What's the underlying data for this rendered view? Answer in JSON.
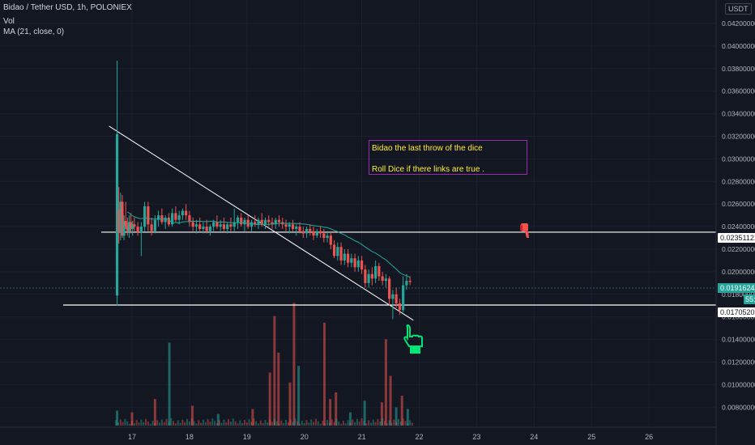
{
  "header": {
    "title": "Bidao / Tether USD, 1h, POLONIEX",
    "vol": "Vol",
    "ma": "MA (21, close, 0)"
  },
  "currency": "USDT",
  "annotation": {
    "line1": "Bidao the last throw of the dice",
    "line2": "Roll Dice if there links are true ."
  },
  "price_labels": {
    "resistance": "0.02351121",
    "current": "0.01916241",
    "countdown": "55:20",
    "support": "0.01705208"
  },
  "colors": {
    "bg": "#131722",
    "up": "#26a69a",
    "down": "#ef5350",
    "ma": "#26a69a",
    "annotation_border": "#9c27b0",
    "annotation_text": "#ffeb3b",
    "hand": "#00e676",
    "thumb": "#ef5350"
  },
  "icons": [
    "pointing-hand-icon",
    "thumbs-down-icon"
  ],
  "chart_data": {
    "type": "candlestick",
    "x_ticks": [
      "17",
      "18",
      "19",
      "20",
      "21",
      "22",
      "23",
      "24",
      "25",
      "26"
    ],
    "y_ticks": [
      "0.04200000",
      "0.04000000",
      "0.03800000",
      "0.03600000",
      "0.03400000",
      "0.03200000",
      "0.03000000",
      "0.02800000",
      "0.02600000",
      "0.02400000",
      "0.02200000",
      "0.02000000",
      "0.01800000",
      "0.01600000",
      "0.01400000",
      "0.01200000",
      "0.01000000",
      "0.00800000"
    ],
    "ylim": [
      0.0073,
      0.0434
    ],
    "x_range_days": [
      16.2,
      26.55
    ],
    "horizontal_levels": [
      0.02351121,
      0.01705208
    ],
    "trendline": {
      "from": [
        16.6,
        0.0329
      ],
      "to": [
        21.9,
        0.0157
      ]
    },
    "candles": [
      {
        "d": 16.74,
        "o": 0.0179,
        "h": 0.0387,
        "l": 0.017,
        "c": 0.0322
      },
      {
        "d": 16.77,
        "o": 0.0255,
        "h": 0.0275,
        "l": 0.0225,
        "c": 0.0235
      },
      {
        "d": 16.8,
        "o": 0.0235,
        "h": 0.027,
        "l": 0.0228,
        "c": 0.0262
      },
      {
        "d": 16.83,
        "o": 0.0262,
        "h": 0.0268,
        "l": 0.023,
        "c": 0.0232
      },
      {
        "d": 16.86,
        "o": 0.0232,
        "h": 0.025,
        "l": 0.0228,
        "c": 0.0245
      },
      {
        "d": 16.89,
        "o": 0.0245,
        "h": 0.0262,
        "l": 0.0238,
        "c": 0.024
      },
      {
        "d": 16.92,
        "o": 0.024,
        "h": 0.0248,
        "l": 0.0232,
        "c": 0.0236
      },
      {
        "d": 16.95,
        "o": 0.0236,
        "h": 0.025,
        "l": 0.023,
        "c": 0.0244
      },
      {
        "d": 16.98,
        "o": 0.0244,
        "h": 0.0252,
        "l": 0.0234,
        "c": 0.0238
      },
      {
        "d": 17.01,
        "o": 0.0238,
        "h": 0.0245,
        "l": 0.0232,
        "c": 0.0242
      },
      {
        "d": 17.04,
        "o": 0.0242,
        "h": 0.0248,
        "l": 0.0236,
        "c": 0.024
      },
      {
        "d": 17.1,
        "o": 0.024,
        "h": 0.0244,
        "l": 0.0232,
        "c": 0.0235
      },
      {
        "d": 17.16,
        "o": 0.0235,
        "h": 0.0244,
        "l": 0.0214,
        "c": 0.024
      },
      {
        "d": 17.22,
        "o": 0.024,
        "h": 0.0262,
        "l": 0.0236,
        "c": 0.0258
      },
      {
        "d": 17.28,
        "o": 0.0258,
        "h": 0.0262,
        "l": 0.0236,
        "c": 0.0242
      },
      {
        "d": 17.34,
        "o": 0.0242,
        "h": 0.0248,
        "l": 0.0232,
        "c": 0.0236
      },
      {
        "d": 17.4,
        "o": 0.0236,
        "h": 0.025,
        "l": 0.0234,
        "c": 0.0246
      },
      {
        "d": 17.46,
        "o": 0.0246,
        "h": 0.0254,
        "l": 0.024,
        "c": 0.025
      },
      {
        "d": 17.52,
        "o": 0.025,
        "h": 0.0256,
        "l": 0.0242,
        "c": 0.0244
      },
      {
        "d": 17.58,
        "o": 0.0244,
        "h": 0.025,
        "l": 0.0238,
        "c": 0.0248
      },
      {
        "d": 17.64,
        "o": 0.0248,
        "h": 0.0252,
        "l": 0.024,
        "c": 0.0242
      },
      {
        "d": 17.7,
        "o": 0.0242,
        "h": 0.0256,
        "l": 0.024,
        "c": 0.0252
      },
      {
        "d": 17.76,
        "o": 0.0252,
        "h": 0.0258,
        "l": 0.0244,
        "c": 0.0246
      },
      {
        "d": 17.82,
        "o": 0.0246,
        "h": 0.0254,
        "l": 0.0242,
        "c": 0.025
      },
      {
        "d": 17.88,
        "o": 0.025,
        "h": 0.0256,
        "l": 0.0246,
        "c": 0.0254
      },
      {
        "d": 17.94,
        "o": 0.0254,
        "h": 0.026,
        "l": 0.0246,
        "c": 0.025
      },
      {
        "d": 18.0,
        "o": 0.025,
        "h": 0.0254,
        "l": 0.024,
        "c": 0.0244
      },
      {
        "d": 18.06,
        "o": 0.0244,
        "h": 0.0248,
        "l": 0.0236,
        "c": 0.024
      },
      {
        "d": 18.12,
        "o": 0.024,
        "h": 0.0246,
        "l": 0.0234,
        "c": 0.0242
      },
      {
        "d": 18.18,
        "o": 0.0242,
        "h": 0.0248,
        "l": 0.0236,
        "c": 0.0238
      },
      {
        "d": 18.24,
        "o": 0.0238,
        "h": 0.0244,
        "l": 0.0234,
        "c": 0.024
      },
      {
        "d": 18.3,
        "o": 0.024,
        "h": 0.0246,
        "l": 0.0234,
        "c": 0.0236
      },
      {
        "d": 18.36,
        "o": 0.0236,
        "h": 0.0242,
        "l": 0.0232,
        "c": 0.024
      },
      {
        "d": 18.42,
        "o": 0.024,
        "h": 0.0246,
        "l": 0.0236,
        "c": 0.0244
      },
      {
        "d": 18.48,
        "o": 0.0244,
        "h": 0.025,
        "l": 0.0238,
        "c": 0.024
      },
      {
        "d": 18.54,
        "o": 0.024,
        "h": 0.0246,
        "l": 0.0236,
        "c": 0.0242
      },
      {
        "d": 18.6,
        "o": 0.0242,
        "h": 0.0248,
        "l": 0.0236,
        "c": 0.0238
      },
      {
        "d": 18.66,
        "o": 0.0238,
        "h": 0.0244,
        "l": 0.0234,
        "c": 0.0242
      },
      {
        "d": 18.72,
        "o": 0.0242,
        "h": 0.0248,
        "l": 0.0236,
        "c": 0.024
      },
      {
        "d": 18.78,
        "o": 0.024,
        "h": 0.0256,
        "l": 0.0236,
        "c": 0.0244
      },
      {
        "d": 18.84,
        "o": 0.0244,
        "h": 0.025,
        "l": 0.0238,
        "c": 0.0248
      },
      {
        "d": 18.9,
        "o": 0.0248,
        "h": 0.0252,
        "l": 0.024,
        "c": 0.0242
      },
      {
        "d": 18.96,
        "o": 0.0242,
        "h": 0.0248,
        "l": 0.0236,
        "c": 0.0246
      },
      {
        "d": 19.02,
        "o": 0.0246,
        "h": 0.025,
        "l": 0.0238,
        "c": 0.024
      },
      {
        "d": 19.08,
        "o": 0.024,
        "h": 0.0246,
        "l": 0.0236,
        "c": 0.0244
      },
      {
        "d": 19.14,
        "o": 0.0244,
        "h": 0.025,
        "l": 0.024,
        "c": 0.0242
      },
      {
        "d": 19.2,
        "o": 0.0242,
        "h": 0.0248,
        "l": 0.0238,
        "c": 0.0246
      },
      {
        "d": 19.26,
        "o": 0.0246,
        "h": 0.0252,
        "l": 0.024,
        "c": 0.0242
      },
      {
        "d": 19.32,
        "o": 0.0242,
        "h": 0.0248,
        "l": 0.0238,
        "c": 0.0246
      },
      {
        "d": 19.38,
        "o": 0.0246,
        "h": 0.025,
        "l": 0.024,
        "c": 0.0244
      },
      {
        "d": 19.44,
        "o": 0.0244,
        "h": 0.0248,
        "l": 0.0238,
        "c": 0.0242
      },
      {
        "d": 19.5,
        "o": 0.0242,
        "h": 0.0248,
        "l": 0.0238,
        "c": 0.0246
      },
      {
        "d": 19.56,
        "o": 0.0246,
        "h": 0.025,
        "l": 0.024,
        "c": 0.0244
      },
      {
        "d": 19.62,
        "o": 0.0244,
        "h": 0.0248,
        "l": 0.0238,
        "c": 0.0242
      },
      {
        "d": 19.68,
        "o": 0.0242,
        "h": 0.0246,
        "l": 0.0236,
        "c": 0.024
      },
      {
        "d": 19.74,
        "o": 0.024,
        "h": 0.0244,
        "l": 0.0234,
        "c": 0.0242
      },
      {
        "d": 19.8,
        "o": 0.0242,
        "h": 0.0246,
        "l": 0.0236,
        "c": 0.0238
      },
      {
        "d": 19.86,
        "o": 0.0238,
        "h": 0.0242,
        "l": 0.0232,
        "c": 0.024
      },
      {
        "d": 19.92,
        "o": 0.024,
        "h": 0.0244,
        "l": 0.0234,
        "c": 0.0236
      },
      {
        "d": 19.98,
        "o": 0.0236,
        "h": 0.024,
        "l": 0.023,
        "c": 0.0234
      },
      {
        "d": 20.04,
        "o": 0.0234,
        "h": 0.024,
        "l": 0.023,
        "c": 0.0238
      },
      {
        "d": 20.1,
        "o": 0.0238,
        "h": 0.0242,
        "l": 0.0232,
        "c": 0.0236
      },
      {
        "d": 20.16,
        "o": 0.0236,
        "h": 0.024,
        "l": 0.0228,
        "c": 0.0232
      },
      {
        "d": 20.22,
        "o": 0.0232,
        "h": 0.0238,
        "l": 0.023,
        "c": 0.0236
      },
      {
        "d": 20.28,
        "o": 0.0236,
        "h": 0.024,
        "l": 0.023,
        "c": 0.0234
      },
      {
        "d": 20.34,
        "o": 0.0234,
        "h": 0.0238,
        "l": 0.0226,
        "c": 0.023
      },
      {
        "d": 20.4,
        "o": 0.023,
        "h": 0.0236,
        "l": 0.0226,
        "c": 0.0232
      },
      {
        "d": 20.46,
        "o": 0.0232,
        "h": 0.0236,
        "l": 0.022,
        "c": 0.0224
      },
      {
        "d": 20.52,
        "o": 0.0224,
        "h": 0.0228,
        "l": 0.0212,
        "c": 0.0214
      },
      {
        "d": 20.58,
        "o": 0.0214,
        "h": 0.0226,
        "l": 0.021,
        "c": 0.0222
      },
      {
        "d": 20.64,
        "o": 0.0222,
        "h": 0.0226,
        "l": 0.0206,
        "c": 0.021
      },
      {
        "d": 20.7,
        "o": 0.021,
        "h": 0.022,
        "l": 0.0206,
        "c": 0.0216
      },
      {
        "d": 20.76,
        "o": 0.0216,
        "h": 0.022,
        "l": 0.0204,
        "c": 0.0208
      },
      {
        "d": 20.82,
        "o": 0.0208,
        "h": 0.0216,
        "l": 0.0204,
        "c": 0.0212
      },
      {
        "d": 20.88,
        "o": 0.0212,
        "h": 0.0216,
        "l": 0.02,
        "c": 0.0204
      },
      {
        "d": 20.94,
        "o": 0.0204,
        "h": 0.0214,
        "l": 0.02,
        "c": 0.021
      },
      {
        "d": 21.0,
        "o": 0.021,
        "h": 0.0214,
        "l": 0.0198,
        "c": 0.0202
      },
      {
        "d": 21.06,
        "o": 0.0202,
        "h": 0.0206,
        "l": 0.0186,
        "c": 0.019
      },
      {
        "d": 21.12,
        "o": 0.019,
        "h": 0.0202,
        "l": 0.0186,
        "c": 0.0198
      },
      {
        "d": 21.18,
        "o": 0.0198,
        "h": 0.0204,
        "l": 0.0188,
        "c": 0.0194
      },
      {
        "d": 21.24,
        "o": 0.0194,
        "h": 0.021,
        "l": 0.019,
        "c": 0.0205
      },
      {
        "d": 21.3,
        "o": 0.0205,
        "h": 0.0208,
        "l": 0.0192,
        "c": 0.0196
      },
      {
        "d": 21.36,
        "o": 0.0196,
        "h": 0.02,
        "l": 0.0188,
        "c": 0.0192
      },
      {
        "d": 21.42,
        "o": 0.0192,
        "h": 0.0198,
        "l": 0.0186,
        "c": 0.0194
      },
      {
        "d": 21.48,
        "o": 0.0194,
        "h": 0.0196,
        "l": 0.017,
        "c": 0.0176
      },
      {
        "d": 21.54,
        "o": 0.0176,
        "h": 0.0184,
        "l": 0.0158,
        "c": 0.018
      },
      {
        "d": 21.6,
        "o": 0.018,
        "h": 0.0186,
        "l": 0.0168,
        "c": 0.0172
      },
      {
        "d": 21.66,
        "o": 0.0172,
        "h": 0.0176,
        "l": 0.0162,
        "c": 0.0166
      },
      {
        "d": 21.72,
        "o": 0.0166,
        "h": 0.0196,
        "l": 0.0164,
        "c": 0.0188
      },
      {
        "d": 21.78,
        "o": 0.0188,
        "h": 0.0198,
        "l": 0.0184,
        "c": 0.0192
      },
      {
        "d": 21.84,
        "o": 0.0192,
        "h": 0.0196,
        "l": 0.0188,
        "c": 0.0191
      }
    ],
    "volume": [
      {
        "d": 16.74,
        "v": 0.9,
        "up": true
      },
      {
        "d": 17.0,
        "v": 0.8,
        "up": false
      },
      {
        "d": 17.4,
        "v": 1.6,
        "up": false
      },
      {
        "d": 17.65,
        "v": 5.0,
        "up": true
      },
      {
        "d": 18.05,
        "v": 1.2,
        "up": false
      },
      {
        "d": 18.5,
        "v": 0.7,
        "up": true
      },
      {
        "d": 19.1,
        "v": 1.0,
        "up": false
      },
      {
        "d": 19.4,
        "v": 3.2,
        "up": false
      },
      {
        "d": 19.48,
        "v": 6.6,
        "up": false
      },
      {
        "d": 19.55,
        "v": 4.4,
        "up": false
      },
      {
        "d": 19.75,
        "v": 2.6,
        "up": false
      },
      {
        "d": 19.82,
        "v": 7.4,
        "up": false
      },
      {
        "d": 19.9,
        "v": 3.6,
        "up": true
      },
      {
        "d": 20.35,
        "v": 6.2,
        "up": false
      },
      {
        "d": 20.45,
        "v": 1.6,
        "up": false
      },
      {
        "d": 20.55,
        "v": 2.0,
        "up": false
      },
      {
        "d": 20.8,
        "v": 0.8,
        "up": true
      },
      {
        "d": 21.05,
        "v": 1.5,
        "up": true
      },
      {
        "d": 21.35,
        "v": 1.4,
        "up": false
      },
      {
        "d": 21.42,
        "v": 5.2,
        "up": false
      },
      {
        "d": 21.5,
        "v": 3.0,
        "up": false
      },
      {
        "d": 21.6,
        "v": 1.1,
        "up": true
      },
      {
        "d": 21.7,
        "v": 1.8,
        "up": false
      },
      {
        "d": 21.8,
        "v": 1.0,
        "up": true
      }
    ]
  }
}
